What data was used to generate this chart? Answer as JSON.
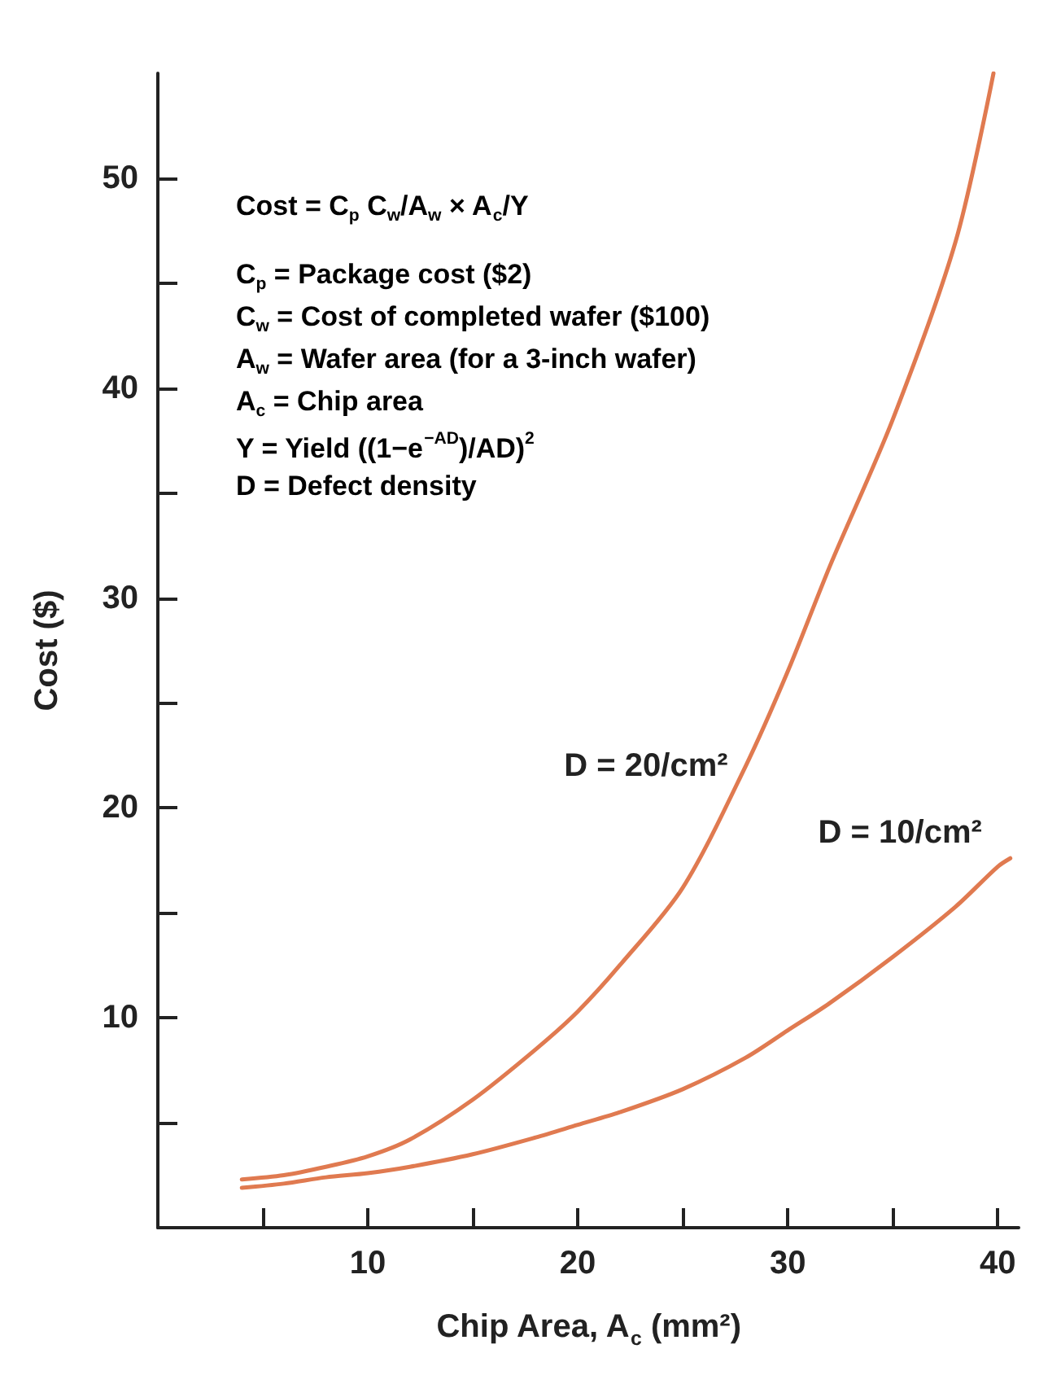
{
  "chart_data": {
    "type": "line",
    "xlabel": "Chip Area, A$_{c}$ (mm²)",
    "ylabel": "Cost ($)",
    "xlim": [
      0,
      41
    ],
    "xticks": [
      {
        "value": 5,
        "label": null
      },
      10,
      {
        "value": 15,
        "label": null
      },
      20,
      {
        "value": 25,
        "label": null
      },
      30,
      {
        "value": 35,
        "label": null
      },
      40
    ],
    "ylim": [
      0,
      55
    ],
    "yticks": [
      {
        "value": 5,
        "label": null
      },
      10,
      {
        "value": 15,
        "label": null
      },
      20,
      {
        "value": 25,
        "label": null
      },
      30,
      {
        "value": 35,
        "label": null
      },
      40,
      {
        "value": 45,
        "label": null
      },
      50
    ],
    "grid": false,
    "marker": "none",
    "line_style": "solid",
    "series": [
      {
        "name": "D = 20/cm²",
        "color": "#e07a50",
        "x": [
          4,
          6,
          8,
          10,
          12,
          15,
          18,
          20,
          22,
          25,
          28,
          30,
          32,
          35,
          38,
          39.8
        ],
        "values": [
          2.3,
          2.5,
          2.9,
          3.4,
          4.2,
          6.1,
          8.5,
          10.3,
          12.5,
          16.2,
          22,
          26.5,
          31.5,
          38.5,
          47,
          55
        ]
      },
      {
        "name": "D = 10/cm²",
        "color": "#e07a50",
        "x": [
          4,
          6,
          8,
          10,
          12,
          15,
          18,
          20,
          22,
          25,
          28,
          30,
          32,
          35,
          38,
          40,
          40.6
        ],
        "values": [
          1.9,
          2.1,
          2.4,
          2.6,
          2.9,
          3.5,
          4.3,
          4.9,
          5.5,
          6.6,
          8.1,
          9.4,
          10.7,
          12.9,
          15.3,
          17.2,
          17.6
        ]
      }
    ],
    "annotations": [
      "Cost = C$_{p}$ C$_{w}$/A$_{w}$ × A$_{c}$/Y",
      "C$_{p}$ = Package cost ($2)",
      "C$_{w}$ = Cost of completed wafer ($100)",
      "A$_{w}$ = Wafer area (for a 3-inch wafer)",
      "A$_{c}$ = Chip area",
      "Y = Yield ((1−e$^{−AD}$)/AD)$^{2}$",
      "D = Defect density"
    ]
  }
}
